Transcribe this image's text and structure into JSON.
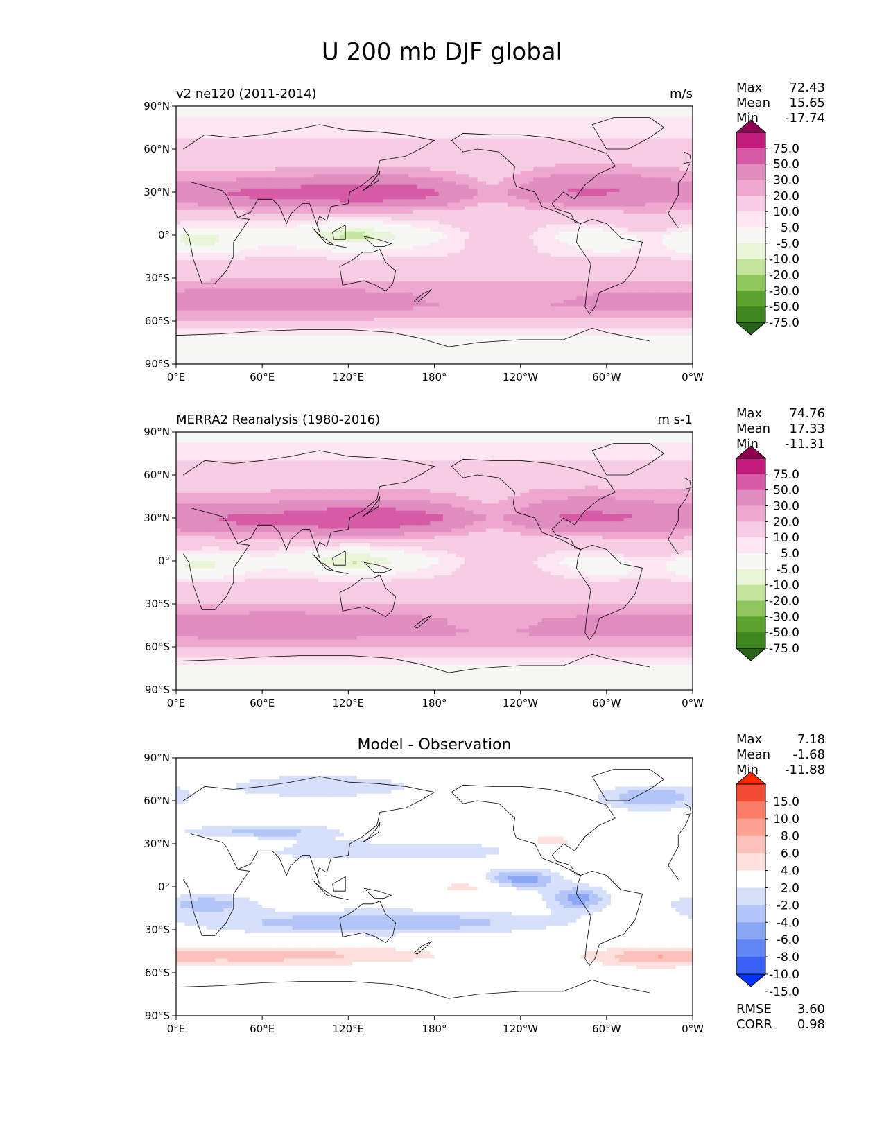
{
  "title": "U 200 mb DJF global",
  "lat_ticks": [
    "90°N",
    "60°N",
    "30°N",
    "0°",
    "30°S",
    "60°S",
    "90°S"
  ],
  "lon_ticks": [
    "0°E",
    "60°E",
    "120°E",
    "180°",
    "120°W",
    "60°W",
    "0°W"
  ],
  "colors": {
    "field": [
      "#276419",
      "#4d9221",
      "#7fbc41",
      "#b8e186",
      "#e6f5d0",
      "#f7f7f7",
      "#fde0ef",
      "#f1b6da",
      "#de77ae",
      "#c51b7d",
      "#8e0152"
    ],
    "field_fill": [
      "#276419",
      "#3f8520",
      "#5ba32d",
      "#8fc75c",
      "#c3e59e",
      "#e8f5d7",
      "#f7f7f6",
      "#fce6f1",
      "#f7cde4",
      "#eea8d0",
      "#e08dbf",
      "#d65aa5",
      "#c11b7c",
      "#8e0152"
    ],
    "diff_fill": [
      "#0033ff",
      "#3a61f5",
      "#6286f5",
      "#8aa7f5",
      "#b3c6f7",
      "#d7e0fb",
      "#ffffff",
      "#fde0dd",
      "#fcc2b9",
      "#fca292",
      "#f97c66",
      "#f24d34",
      "#ff2a00"
    ],
    "coast": "#000000"
  },
  "panels": [
    {
      "left_title": "v2 ne120 (2011-2014)",
      "right_title": "m/s",
      "center_title": "",
      "stats": [
        {
          "k": "Max",
          "v": "72.43"
        },
        {
          "k": "Mean",
          "v": "15.65"
        },
        {
          "k": "Min",
          "v": "-17.74"
        }
      ],
      "colorbar": {
        "labels": [
          "75.0",
          "50.0",
          "30.0",
          "20.0",
          "10.0",
          "5.0",
          "-5.0",
          "-10.0",
          "-20.0",
          "-30.0",
          "-50.0",
          "-75.0"
        ]
      }
    },
    {
      "left_title": "MERRA2 Reanalysis (1980-2016)",
      "right_title": "m s-1",
      "center_title": "",
      "stats": [
        {
          "k": "Max",
          "v": "74.76"
        },
        {
          "k": "Mean",
          "v": "17.33"
        },
        {
          "k": "Min",
          "v": "-11.31"
        }
      ],
      "colorbar": {
        "labels": [
          "75.0",
          "50.0",
          "30.0",
          "20.0",
          "10.0",
          "5.0",
          "-5.0",
          "-10.0",
          "-20.0",
          "-30.0",
          "-50.0",
          "-75.0"
        ]
      }
    },
    {
      "left_title": "",
      "right_title": "",
      "center_title": "Model - Observation",
      "stats": [
        {
          "k": "Max",
          "v": "7.18"
        },
        {
          "k": "Mean",
          "v": "-1.68"
        },
        {
          "k": "Min",
          "v": "-11.88"
        }
      ],
      "colorbar": {
        "labels": [
          "15.0",
          "10.0",
          "8.0",
          "6.0",
          "4.0",
          "2.0",
          "-2.0",
          "-4.0",
          "-6.0",
          "-8.0",
          "-10.0",
          "-15.0"
        ]
      },
      "extra_stats": [
        {
          "k": "RMSE",
          "v": "3.60"
        },
        {
          "k": "CORR",
          "v": "0.98"
        }
      ]
    }
  ],
  "chart_data": [
    {
      "type": "heatmap",
      "title": "v2 ne120 (2011-2014)",
      "variable": "U 200 mb DJF",
      "units": "m/s",
      "levels": [
        -75,
        -50,
        -30,
        -20,
        -10,
        -5,
        5,
        10,
        20,
        30,
        50,
        75
      ],
      "x_range": [
        0,
        360
      ],
      "y_range": [
        -90,
        90
      ],
      "zonal_profile": {
        "lat": [
          -90,
          -70,
          -60,
          -50,
          -40,
          -30,
          -15,
          0,
          15,
          25,
          30,
          35,
          45,
          60,
          75,
          90
        ],
        "u": [
          0,
          5,
          18,
          32,
          30,
          18,
          10,
          2,
          15,
          35,
          42,
          32,
          20,
          12,
          8,
          2
        ]
      },
      "max": 72.43,
      "mean": 15.65,
      "min": -17.74
    },
    {
      "type": "heatmap",
      "title": "MERRA2 Reanalysis (1980-2016)",
      "variable": "U 200 mb DJF",
      "units": "m s-1",
      "levels": [
        -75,
        -50,
        -30,
        -20,
        -10,
        -5,
        5,
        10,
        20,
        30,
        50,
        75
      ],
      "x_range": [
        0,
        360
      ],
      "y_range": [
        -90,
        90
      ],
      "zonal_profile": {
        "lat": [
          -90,
          -70,
          -60,
          -50,
          -40,
          -30,
          -15,
          0,
          15,
          25,
          30,
          35,
          45,
          60,
          75,
          90
        ],
        "u": [
          0,
          6,
          20,
          34,
          32,
          20,
          12,
          3,
          16,
          36,
          44,
          34,
          22,
          13,
          8,
          2
        ]
      },
      "max": 74.76,
      "mean": 17.33,
      "min": -11.31
    },
    {
      "type": "heatmap",
      "title": "Model - Observation",
      "levels": [
        -15,
        -10,
        -8,
        -6,
        -4,
        -2,
        2,
        4,
        6,
        8,
        10,
        15
      ],
      "x_range": [
        0,
        360
      ],
      "y_range": [
        -90,
        90
      ],
      "max": 7.18,
      "mean": -1.68,
      "min": -11.88,
      "rmse": 3.6,
      "corr": 0.98
    }
  ]
}
